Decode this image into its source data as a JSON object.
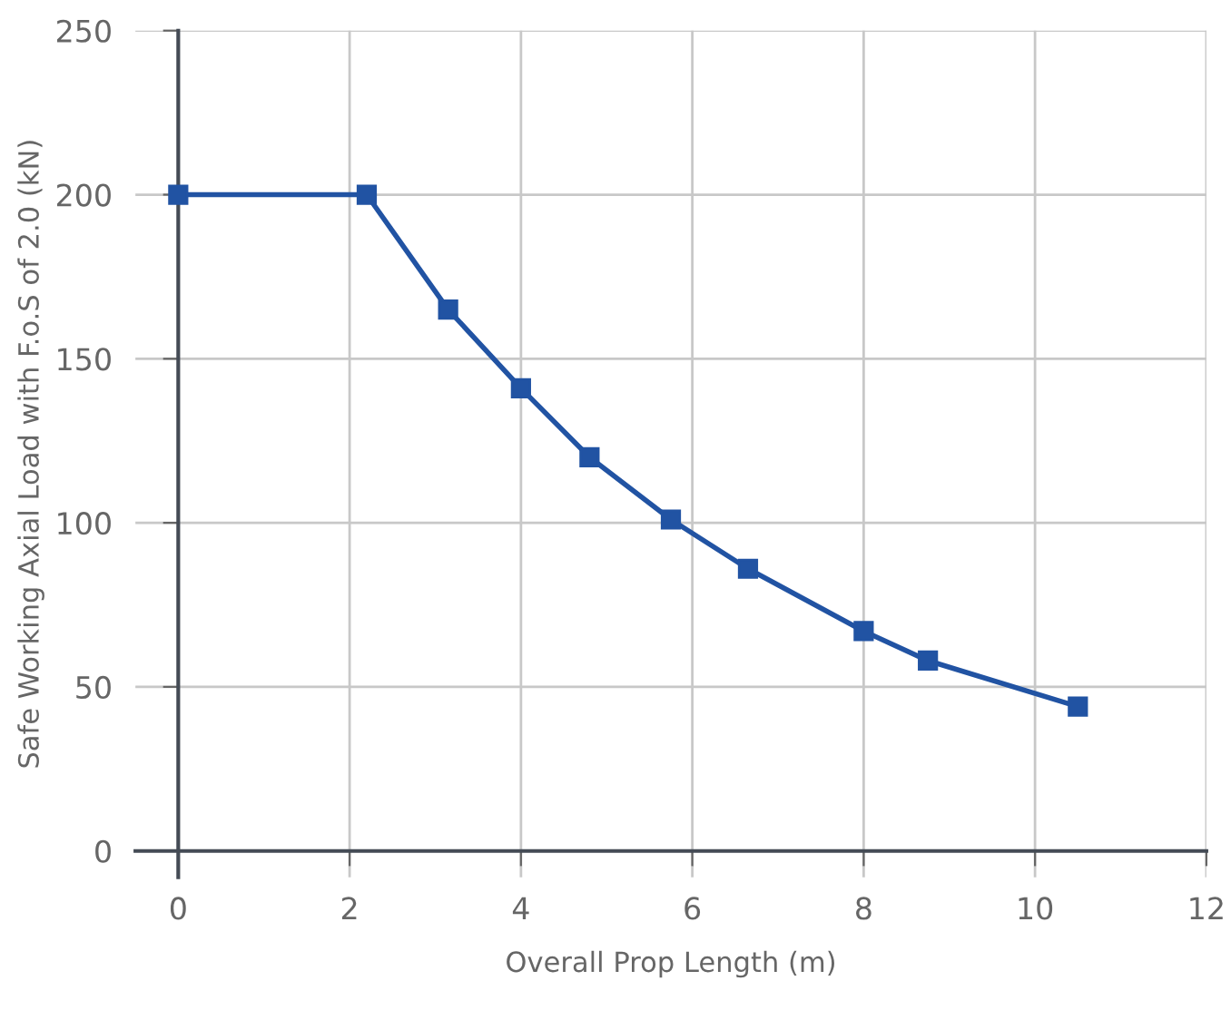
{
  "chart_data": {
    "type": "line",
    "xlabel": "Overall Prop Length (m)",
    "ylabel": "Safe Working Axial Load with F.o.S of 2.0 (kN)",
    "x": [
      0,
      2.2,
      3.15,
      4,
      4.8,
      5.75,
      6.65,
      8,
      8.75,
      10.5
    ],
    "series": [
      {
        "color": "#2153a3",
        "values": [
          200,
          200,
          165,
          141,
          120,
          101,
          86,
          67,
          58,
          44
        ]
      }
    ],
    "xlim": [
      -0.5,
      12
    ],
    "ylim": [
      -8,
      250
    ],
    "xticks": [
      0,
      2,
      4,
      6,
      8,
      10,
      12
    ],
    "yticks": [
      0,
      50,
      100,
      150,
      200,
      250
    ],
    "grid": true,
    "marker": "square",
    "line_style": "solid"
  }
}
